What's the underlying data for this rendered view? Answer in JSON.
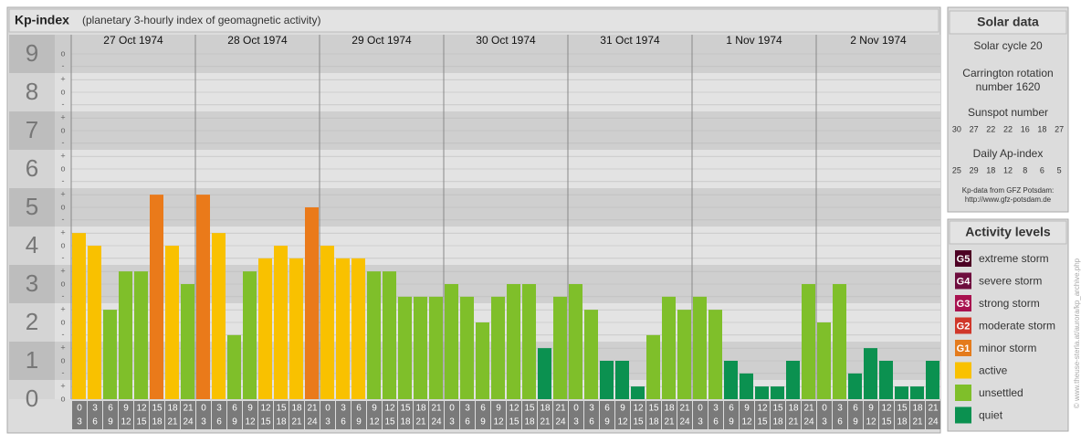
{
  "chart_data": {
    "type": "bar",
    "title": "Kp-index",
    "subtitle": "(planetary 3-hourly index of geomagnetic activity)",
    "days": [
      "27 Oct 1974",
      "28 Oct 1974",
      "29 Oct 1974",
      "30 Oct 1974",
      "31 Oct 1974",
      "1 Nov 1974",
      "2 Nov 1974"
    ],
    "hours": [
      [
        "0",
        "3"
      ],
      [
        "3",
        "6"
      ],
      [
        "6",
        "9"
      ],
      [
        "9",
        "12"
      ],
      [
        "12",
        "15"
      ],
      [
        "15",
        "18"
      ],
      [
        "18",
        "21"
      ],
      [
        "21",
        "24"
      ]
    ],
    "values": [
      4.33,
      4,
      2.33,
      3.33,
      3.33,
      5.33,
      4,
      3,
      5.33,
      4.33,
      1.67,
      3.33,
      3.67,
      4,
      3.67,
      5,
      4,
      3.67,
      3.67,
      3.33,
      3.33,
      2.67,
      2.67,
      2.67,
      3,
      2.67,
      2,
      2.67,
      3,
      3,
      1.33,
      2.67,
      3,
      2.33,
      1,
      1,
      0.33,
      1.67,
      2.67,
      2.33,
      2.67,
      2.33,
      1,
      0.67,
      0.33,
      0.33,
      1,
      3,
      2,
      3,
      0.67,
      1.33,
      1,
      0.33,
      0.33,
      1
    ],
    "colors": [
      "#f9c100",
      "#f9c100",
      "#7fbf2a",
      "#7fbf2a",
      "#7fbf2a",
      "#ea7a1a",
      "#f9c100",
      "#7fbf2a",
      "#ea7a1a",
      "#f9c100",
      "#7fbf2a",
      "#7fbf2a",
      "#f9c100",
      "#f9c100",
      "#f9c100",
      "#ea7a1a",
      "#f9c100",
      "#f9c100",
      "#f9c100",
      "#7fbf2a",
      "#7fbf2a",
      "#7fbf2a",
      "#7fbf2a",
      "#7fbf2a",
      "#7fbf2a",
      "#7fbf2a",
      "#7fbf2a",
      "#7fbf2a",
      "#7fbf2a",
      "#7fbf2a",
      "#0b9150",
      "#7fbf2a",
      "#7fbf2a",
      "#7fbf2a",
      "#0b9150",
      "#0b9150",
      "#0b9150",
      "#7fbf2a",
      "#7fbf2a",
      "#7fbf2a",
      "#7fbf2a",
      "#7fbf2a",
      "#0b9150",
      "#0b9150",
      "#0b9150",
      "#0b9150",
      "#0b9150",
      "#7fbf2a",
      "#7fbf2a",
      "#7fbf2a",
      "#0b9150",
      "#0b9150",
      "#0b9150",
      "#0b9150",
      "#0b9150",
      "#0b9150"
    ],
    "ylim": [
      0,
      9.5
    ],
    "yticks": [
      0,
      1,
      2,
      3,
      4,
      5,
      6,
      7,
      8,
      9
    ],
    "minor_ticks": [
      {
        "value": 9,
        "label": "o"
      },
      {
        "value": 8.67,
        "label": "-"
      },
      {
        "value": 8.33,
        "label": "+"
      },
      {
        "value": 8,
        "label": "o"
      },
      {
        "value": 7.67,
        "label": "-"
      },
      {
        "value": 7.33,
        "label": "+"
      },
      {
        "value": 7,
        "label": "o"
      },
      {
        "value": 6.67,
        "label": "-"
      },
      {
        "value": 6.33,
        "label": "+"
      },
      {
        "value": 6,
        "label": "o"
      },
      {
        "value": 5.67,
        "label": "-"
      },
      {
        "value": 5.33,
        "label": "+"
      },
      {
        "value": 5,
        "label": "o"
      },
      {
        "value": 4.67,
        "label": "-"
      },
      {
        "value": 4.33,
        "label": "+"
      },
      {
        "value": 4,
        "label": "o"
      },
      {
        "value": 3.67,
        "label": "-"
      },
      {
        "value": 3.33,
        "label": "+"
      },
      {
        "value": 3,
        "label": "o"
      },
      {
        "value": 2.67,
        "label": "-"
      },
      {
        "value": 2.33,
        "label": "+"
      },
      {
        "value": 2,
        "label": "o"
      },
      {
        "value": 1.67,
        "label": "-"
      },
      {
        "value": 1.33,
        "label": "+"
      },
      {
        "value": 1,
        "label": "o"
      },
      {
        "value": 0.67,
        "label": "-"
      },
      {
        "value": 0.33,
        "label": "+"
      },
      {
        "value": 0,
        "label": "o"
      }
    ]
  },
  "solar_data": {
    "title": "Solar data",
    "cycle": "Solar cycle 20",
    "carrington": [
      "Carrington rotation",
      "number 1620"
    ],
    "sunspot_title": "Sunspot number",
    "sunspot": [
      30,
      27,
      22,
      22,
      16,
      18,
      27
    ],
    "ap_title": "Daily Ap-index",
    "ap": [
      25,
      29,
      18,
      12,
      8,
      6,
      5
    ],
    "source": [
      "Kp-data from GFZ Potsdam:",
      "http://www.gfz-potsdam.de"
    ]
  },
  "legend": {
    "title": "Activity levels",
    "items": [
      {
        "badge": "G5",
        "label": "extreme storm",
        "color": "#4d0024"
      },
      {
        "badge": "G4",
        "label": "severe storm",
        "color": "#6e0d3e"
      },
      {
        "badge": "G3",
        "label": "strong storm",
        "color": "#a8124f"
      },
      {
        "badge": "G2",
        "label": "moderate storm",
        "color": "#d0372a"
      },
      {
        "badge": "G1",
        "label": "minor storm",
        "color": "#e47b1c"
      },
      {
        "badge": "",
        "label": "active",
        "color": "#f9c100"
      },
      {
        "badge": "",
        "label": "unsettled",
        "color": "#7fbf2a"
      },
      {
        "badge": "",
        "label": "quiet",
        "color": "#0b9150"
      }
    ]
  },
  "credit": "© www.theuse-sterla.at/aurora/kp_archive.php"
}
